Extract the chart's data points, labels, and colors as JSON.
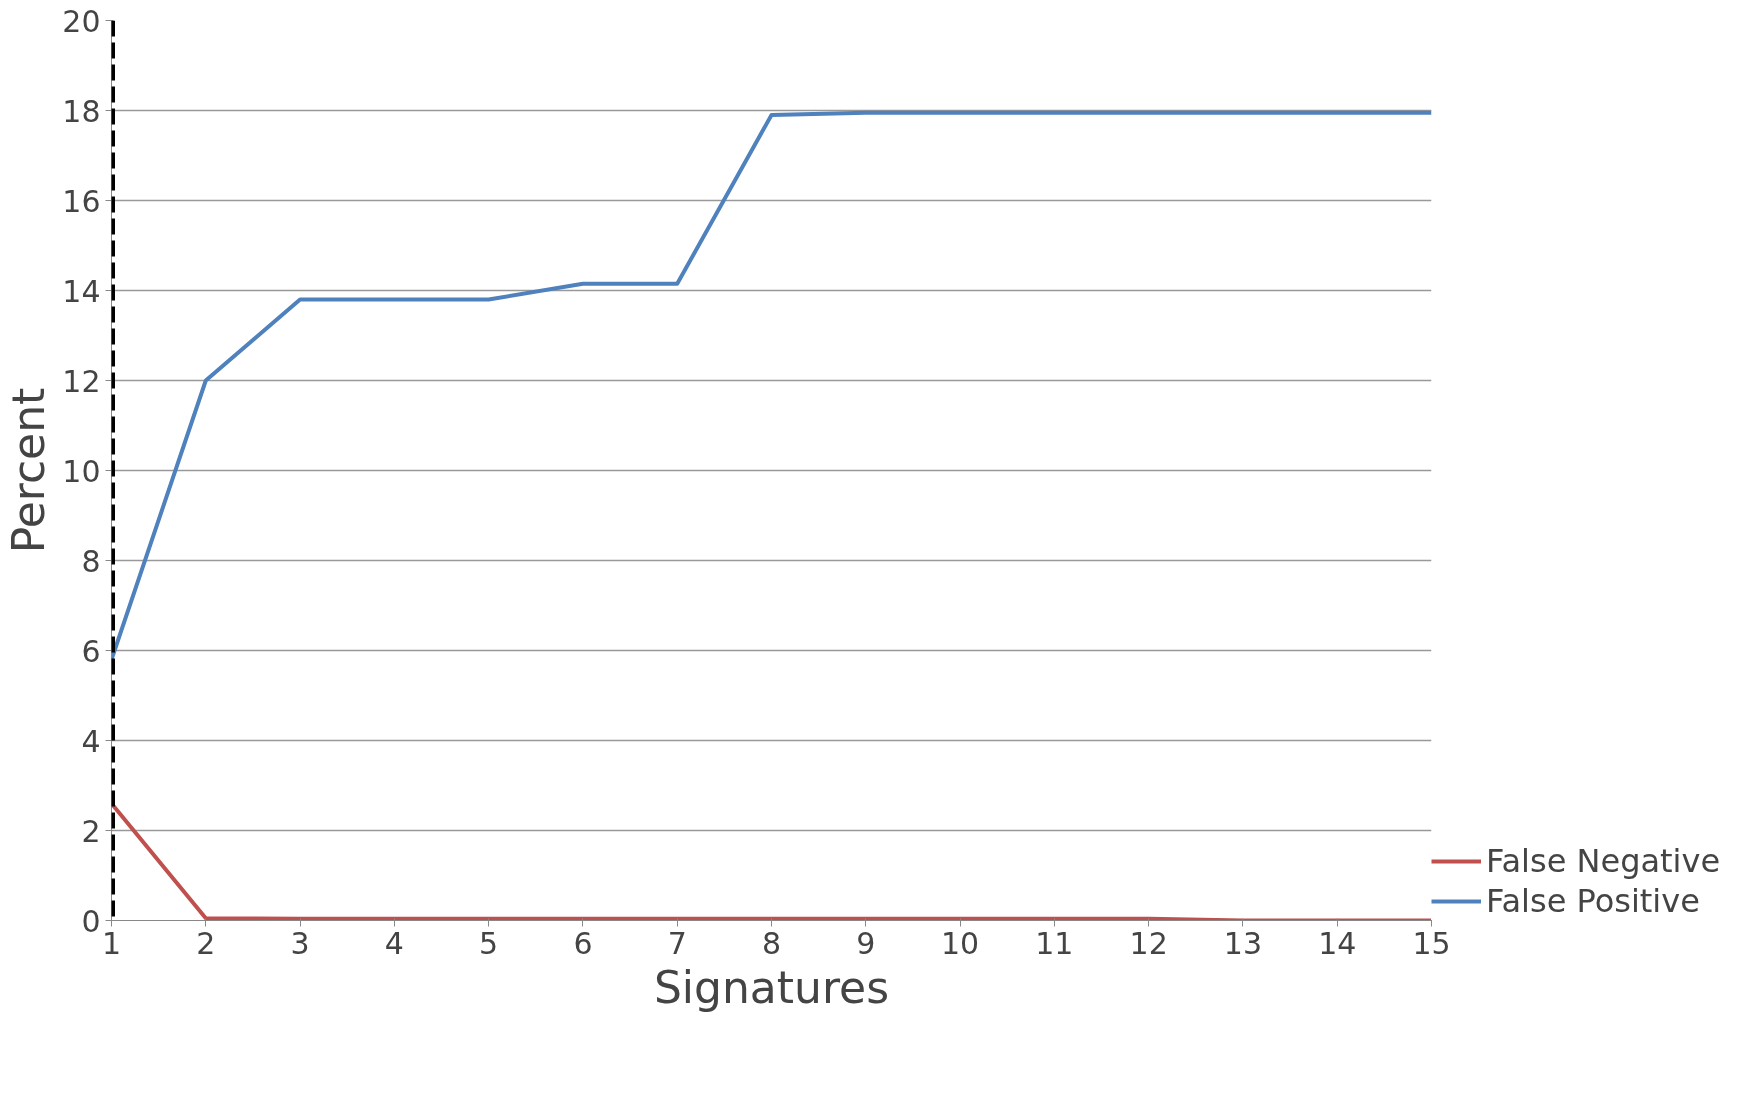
{
  "chart_data": {
    "type": "line",
    "xlabel": "Signatures",
    "ylabel": "Percent",
    "x": [
      1,
      2,
      3,
      4,
      5,
      6,
      7,
      8,
      9,
      10,
      11,
      12,
      13,
      14,
      15
    ],
    "series": [
      {
        "name": "False Negative",
        "color": "#c0504d",
        "values": [
          2.6,
          0.05,
          0.04,
          0.04,
          0.04,
          0.04,
          0.04,
          0.04,
          0.04,
          0.04,
          0.04,
          0.04,
          0.0,
          0.0,
          0.0
        ]
      },
      {
        "name": "False Positive",
        "color": "#4f81bd",
        "values": [
          5.8,
          12.0,
          13.8,
          13.8,
          13.8,
          14.15,
          14.15,
          17.9,
          17.95,
          17.95,
          17.95,
          17.95,
          17.95,
          17.95,
          17.95
        ]
      }
    ],
    "xlim": [
      1,
      15
    ],
    "xticks": [
      1,
      2,
      3,
      4,
      5,
      6,
      7,
      8,
      9,
      10,
      11,
      12,
      13,
      14,
      15
    ],
    "ylim": [
      0,
      20
    ],
    "yticks": [
      0,
      2,
      4,
      6,
      8,
      10,
      12,
      14,
      16,
      18,
      20
    ],
    "ref_lines": [
      {
        "axis": "x",
        "value": 1,
        "color": "#000000",
        "line_style": "dashed"
      }
    ],
    "grid": "y",
    "legend": "bottom right",
    "marker": "none",
    "line_style": "solid"
  }
}
